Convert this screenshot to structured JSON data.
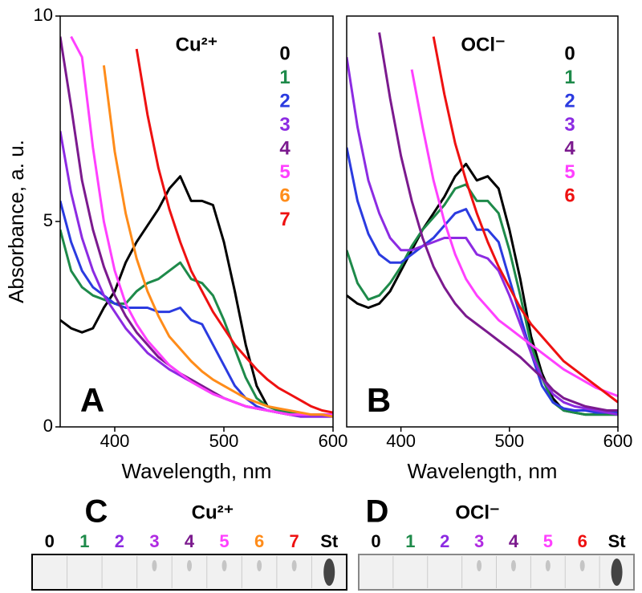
{
  "chart_data": [
    {
      "type": "line",
      "title": "Cu²⁺",
      "annotation": "A",
      "x_label": "Wavelength, nm",
      "y_label": "Absorbance, a. u.",
      "xlim": [
        350,
        600
      ],
      "ylim": [
        0,
        10
      ],
      "xticks": [
        400,
        500,
        600
      ],
      "yticks": [
        0,
        5,
        10
      ],
      "legend": "upper right",
      "x": [
        350,
        360,
        370,
        380,
        390,
        400,
        410,
        420,
        430,
        440,
        450,
        460,
        470,
        480,
        490,
        500,
        510,
        520,
        530,
        540,
        550,
        560,
        570,
        580,
        590,
        600
      ],
      "series": [
        {
          "name": "0",
          "color": "#000000",
          "values": [
            2.6,
            2.4,
            2.3,
            2.4,
            2.9,
            3.3,
            4.0,
            4.5,
            4.9,
            5.3,
            5.8,
            6.1,
            5.5,
            5.5,
            5.4,
            4.5,
            3.3,
            2.0,
            1.0,
            0.5,
            0.4,
            0.35,
            0.3,
            0.3,
            0.3,
            0.3
          ]
        },
        {
          "name": "1",
          "color": "#1e8a4a",
          "values": [
            4.8,
            3.8,
            3.4,
            3.2,
            3.1,
            3.0,
            3.0,
            3.3,
            3.5,
            3.6,
            3.8,
            4.0,
            3.6,
            3.5,
            3.2,
            2.6,
            1.9,
            1.2,
            0.7,
            0.5,
            0.4,
            0.35,
            0.3,
            0.3,
            0.3,
            0.3
          ]
        },
        {
          "name": "2",
          "color": "#2b3be0",
          "values": [
            5.5,
            4.5,
            3.8,
            3.4,
            3.2,
            3.0,
            2.9,
            2.9,
            2.9,
            2.8,
            2.8,
            2.9,
            2.6,
            2.5,
            2.0,
            1.5,
            1.0,
            0.7,
            0.5,
            0.4,
            0.35,
            0.3,
            0.3,
            0.3,
            0.3,
            0.3
          ]
        },
        {
          "name": "3",
          "color": "#8c2be2",
          "values": [
            7.2,
            5.7,
            4.6,
            3.8,
            3.2,
            2.8,
            2.4,
            2.1,
            1.8,
            1.6,
            1.4,
            1.25,
            1.1,
            0.95,
            0.8,
            0.7,
            0.6,
            0.5,
            0.45,
            0.4,
            0.35,
            0.3,
            0.25,
            0.25,
            0.25,
            0.25
          ]
        },
        {
          "name": "4",
          "color": "#7b1a8e",
          "values": [
            9.5,
            7.8,
            6.0,
            4.8,
            3.9,
            3.2,
            2.7,
            2.3,
            2.0,
            1.7,
            1.5,
            1.3,
            1.15,
            1.0,
            0.85,
            0.7,
            0.6,
            0.5,
            0.45,
            0.4,
            0.35,
            0.3,
            0.3,
            0.3,
            0.3,
            0.3
          ]
        },
        {
          "name": "5",
          "color": "#ff40ff",
          "values": [
            null,
            9.5,
            9.0,
            6.8,
            5.0,
            3.8,
            3.0,
            2.5,
            2.1,
            1.8,
            1.5,
            1.3,
            1.1,
            0.95,
            0.8,
            0.7,
            0.6,
            0.5,
            0.45,
            0.4,
            0.35,
            0.3,
            0.3,
            0.3,
            0.3,
            0.3
          ]
        },
        {
          "name": "6",
          "color": "#ff8c1a",
          "values": [
            null,
            null,
            null,
            null,
            8.8,
            6.7,
            5.2,
            4.1,
            3.3,
            2.7,
            2.2,
            1.9,
            1.6,
            1.35,
            1.15,
            1.0,
            0.85,
            0.7,
            0.6,
            0.5,
            0.45,
            0.4,
            0.35,
            0.3,
            0.3,
            0.25
          ]
        },
        {
          "name": "7",
          "color": "#ee1111",
          "values": [
            null,
            null,
            null,
            null,
            null,
            null,
            null,
            9.2,
            7.6,
            6.3,
            5.3,
            4.5,
            3.8,
            3.3,
            2.8,
            2.4,
            2.0,
            1.7,
            1.4,
            1.15,
            0.95,
            0.8,
            0.65,
            0.5,
            0.4,
            0.35
          ]
        }
      ]
    },
    {
      "type": "line",
      "title": "OCl⁻",
      "annotation": "B",
      "x_label": "Wavelength, nm",
      "xlim": [
        350,
        600
      ],
      "ylim": [
        0,
        10
      ],
      "xticks": [
        400,
        500,
        600
      ],
      "legend": "upper right",
      "x": [
        350,
        360,
        370,
        380,
        390,
        400,
        410,
        420,
        430,
        440,
        450,
        460,
        470,
        480,
        490,
        500,
        510,
        520,
        530,
        540,
        550,
        560,
        570,
        580,
        590,
        600
      ],
      "series": [
        {
          "name": "0",
          "color": "#000000",
          "values": [
            3.2,
            3.0,
            2.9,
            3.0,
            3.3,
            3.8,
            4.3,
            4.8,
            5.2,
            5.6,
            6.1,
            6.4,
            6.0,
            6.1,
            5.8,
            4.8,
            3.6,
            2.2,
            1.3,
            0.7,
            0.4,
            0.35,
            0.3,
            0.3,
            0.3,
            0.3
          ]
        },
        {
          "name": "1",
          "color": "#1e8a4a",
          "values": [
            4.3,
            3.5,
            3.1,
            3.2,
            3.5,
            3.9,
            4.4,
            4.8,
            5.1,
            5.4,
            5.8,
            5.9,
            5.5,
            5.5,
            5.2,
            4.3,
            3.2,
            2.0,
            1.2,
            0.6,
            0.4,
            0.35,
            0.3,
            0.3,
            0.3,
            0.3
          ]
        },
        {
          "name": "2",
          "color": "#2b3be0",
          "values": [
            6.8,
            5.5,
            4.7,
            4.2,
            4.0,
            4.0,
            4.2,
            4.4,
            4.6,
            4.9,
            5.2,
            5.3,
            4.8,
            4.8,
            4.5,
            3.6,
            2.7,
            1.8,
            1.0,
            0.6,
            0.45,
            0.4,
            0.4,
            0.35,
            0.35,
            0.35
          ]
        },
        {
          "name": "3",
          "color": "#8c2be2",
          "values": [
            9.0,
            7.3,
            6.0,
            5.2,
            4.6,
            4.3,
            4.3,
            4.4,
            4.5,
            4.6,
            4.6,
            4.6,
            4.2,
            4.1,
            3.8,
            3.2,
            2.5,
            1.8,
            1.2,
            0.8,
            0.6,
            0.5,
            0.45,
            0.4,
            0.35,
            0.3
          ]
        },
        {
          "name": "4",
          "color": "#7b1a8e",
          "values": [
            null,
            null,
            null,
            9.6,
            8.0,
            6.6,
            5.5,
            4.6,
            3.9,
            3.4,
            3.0,
            2.7,
            2.5,
            2.3,
            2.1,
            1.9,
            1.7,
            1.45,
            1.2,
            0.9,
            0.7,
            0.6,
            0.5,
            0.45,
            0.4,
            0.4
          ]
        },
        {
          "name": "5",
          "color": "#ff40ff",
          "values": [
            null,
            null,
            null,
            null,
            null,
            null,
            8.7,
            7.3,
            6.0,
            5.0,
            4.2,
            3.6,
            3.2,
            2.9,
            2.6,
            2.4,
            2.2,
            2.0,
            1.8,
            1.6,
            1.4,
            1.25,
            1.1,
            0.95,
            0.85,
            0.75
          ]
        },
        {
          "name": "6",
          "color": "#ee1111",
          "values": [
            null,
            null,
            null,
            null,
            null,
            null,
            null,
            null,
            9.5,
            8.1,
            6.9,
            6.0,
            5.2,
            4.5,
            3.9,
            3.4,
            2.9,
            2.5,
            2.2,
            1.9,
            1.6,
            1.4,
            1.2,
            1.0,
            0.8,
            0.6
          ]
        }
      ]
    }
  ],
  "tlc_panels": [
    {
      "letter": "C",
      "title": "Cu²⁺",
      "lanes": [
        {
          "label": "0",
          "color": "#000000"
        },
        {
          "label": "1",
          "color": "#1e8a4a"
        },
        {
          "label": "2",
          "color": "#8c2be2"
        },
        {
          "label": "3",
          "color": "#b02be2"
        },
        {
          "label": "4",
          "color": "#7b1a8e"
        },
        {
          "label": "5",
          "color": "#ff40ff"
        },
        {
          "label": "6",
          "color": "#ff8c1a"
        },
        {
          "label": "7",
          "color": "#ee1111"
        },
        {
          "label": "St",
          "color": "#000000"
        }
      ]
    },
    {
      "letter": "D",
      "title": "OCl⁻",
      "lanes": [
        {
          "label": "0",
          "color": "#000000"
        },
        {
          "label": "1",
          "color": "#1e8a4a"
        },
        {
          "label": "2",
          "color": "#8c2be2"
        },
        {
          "label": "3",
          "color": "#b02be2"
        },
        {
          "label": "4",
          "color": "#7b1a8e"
        },
        {
          "label": "5",
          "color": "#ff40ff"
        },
        {
          "label": "6",
          "color": "#ee1111"
        },
        {
          "label": "St",
          "color": "#000000"
        }
      ]
    }
  ]
}
